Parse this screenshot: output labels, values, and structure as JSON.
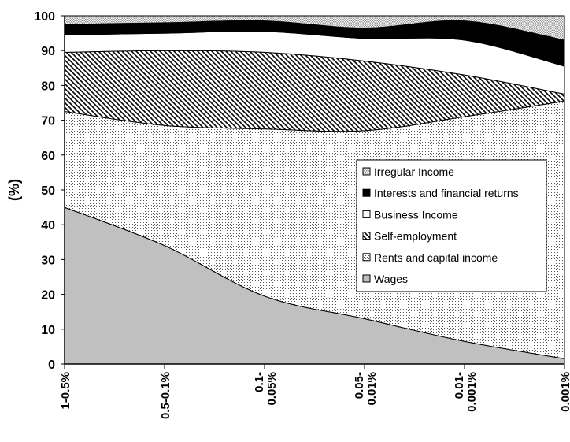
{
  "chart_data": {
    "type": "area",
    "stacked": true,
    "ylabel": "(%)",
    "xlabel": "",
    "ylim": [
      0,
      100
    ],
    "yticks": [
      0,
      10,
      20,
      30,
      40,
      50,
      60,
      70,
      80,
      90,
      100
    ],
    "grid": false,
    "legend_position": "center-right",
    "categories": [
      "1-0.5%",
      "0.5-0.1%",
      "0.1-0.05%",
      "0.05-0.01%",
      "0.01-0.001%",
      "0.001%"
    ],
    "category_labels": [
      [
        "1-0.5%"
      ],
      [
        "0.5-0.1%"
      ],
      [
        "0.1-",
        "0.05%"
      ],
      [
        "0.05-",
        "0.01%"
      ],
      [
        "0.01-",
        "0.001%"
      ],
      [
        "0.001%"
      ]
    ],
    "series": [
      {
        "name": "Wages",
        "values": [
          45,
          34,
          19.5,
          13,
          6.5,
          1.5
        ],
        "fill": "#c0c0c0",
        "pattern": "solid"
      },
      {
        "name": "Rents and capital income",
        "values": [
          27.5,
          34.5,
          48,
          54,
          64.5,
          74
        ],
        "fill": "#ffffff",
        "pattern": "dots"
      },
      {
        "name": "Self-employment",
        "values": [
          17,
          21.5,
          22,
          20,
          12,
          2
        ],
        "fill": "#ffffff",
        "pattern": "diagonal"
      },
      {
        "name": "Business Income",
        "values": [
          5,
          5,
          6,
          6.5,
          10,
          8
        ],
        "fill": "#ffffff",
        "pattern": "solid"
      },
      {
        "name": "Interests and financial returns",
        "values": [
          3,
          3,
          3,
          3,
          5.5,
          7.5
        ],
        "fill": "#000000",
        "pattern": "solid"
      },
      {
        "name": "Irregular Income",
        "values": [
          2.5,
          2,
          1.5,
          3.5,
          1.5,
          7
        ],
        "fill": "#ffffff",
        "pattern": "checker"
      }
    ],
    "legend_order": [
      "Irregular Income",
      "Interests and financial returns",
      "Business Income",
      "Self-employment",
      "Rents and capital income",
      "Wages"
    ]
  }
}
